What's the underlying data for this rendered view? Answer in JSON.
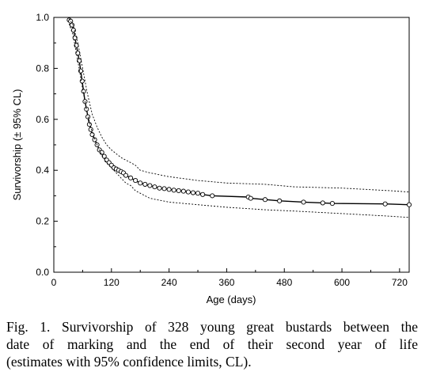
{
  "chart_data": {
    "type": "line",
    "xlabel": "Age (days)",
    "ylabel": "Survivorship (± 95% CL)",
    "xlim": [
      0,
      740
    ],
    "ylim": [
      0,
      1
    ],
    "x_ticks": [
      0,
      120,
      240,
      360,
      480,
      600,
      720
    ],
    "y_ticks": [
      0.0,
      0.2,
      0.4,
      0.6,
      0.8,
      1.0
    ],
    "x_tick_labels": [
      "0",
      "120",
      "240",
      "360",
      "480",
      "600",
      "720"
    ],
    "y_tick_labels": [
      "0.0",
      "0.2",
      "0.4",
      "0.6",
      "0.8",
      "1.0"
    ],
    "series": [
      {
        "style": "solid-with-circles",
        "x": [
          32,
          35,
          38,
          41,
          44,
          47,
          50,
          53,
          56,
          59,
          62,
          65,
          68,
          71,
          74,
          77,
          80,
          85,
          90,
          95,
          100,
          105,
          110,
          115,
          120,
          125,
          130,
          135,
          140,
          145,
          150,
          160,
          170,
          180,
          190,
          200,
          210,
          220,
          230,
          240,
          250,
          260,
          270,
          280,
          290,
          300,
          310,
          330,
          405,
          410,
          440,
          470,
          520,
          560,
          580,
          690,
          740
        ],
        "y": [
          0.99,
          0.985,
          0.97,
          0.95,
          0.92,
          0.89,
          0.86,
          0.83,
          0.79,
          0.75,
          0.71,
          0.67,
          0.64,
          0.61,
          0.58,
          0.56,
          0.54,
          0.52,
          0.5,
          0.48,
          0.47,
          0.455,
          0.44,
          0.43,
          0.42,
          0.41,
          0.405,
          0.4,
          0.395,
          0.39,
          0.38,
          0.37,
          0.36,
          0.35,
          0.345,
          0.34,
          0.335,
          0.33,
          0.328,
          0.325,
          0.322,
          0.32,
          0.318,
          0.315,
          0.312,
          0.31,
          0.305,
          0.3,
          0.295,
          0.29,
          0.285,
          0.28,
          0.275,
          0.272,
          0.27,
          0.268,
          0.265
        ]
      },
      {
        "style": "dotted-upper",
        "x": [
          32,
          40,
          50,
          60,
          70,
          80,
          90,
          100,
          110,
          120,
          130,
          140,
          150,
          160,
          170,
          180,
          200,
          240,
          300,
          360,
          440,
          500,
          600,
          700,
          740
        ],
        "y": [
          0.995,
          0.97,
          0.9,
          0.8,
          0.7,
          0.62,
          0.57,
          0.53,
          0.5,
          0.48,
          0.465,
          0.45,
          0.44,
          0.43,
          0.42,
          0.4,
          0.39,
          0.375,
          0.36,
          0.35,
          0.345,
          0.335,
          0.33,
          0.32,
          0.315
        ]
      },
      {
        "style": "dotted-lower",
        "x": [
          32,
          40,
          50,
          60,
          70,
          80,
          90,
          100,
          110,
          120,
          130,
          140,
          150,
          160,
          170,
          180,
          200,
          240,
          300,
          360,
          440,
          500,
          600,
          700,
          740
        ],
        "y": [
          0.975,
          0.93,
          0.83,
          0.72,
          0.62,
          0.55,
          0.5,
          0.46,
          0.43,
          0.41,
          0.39,
          0.37,
          0.35,
          0.34,
          0.32,
          0.31,
          0.29,
          0.275,
          0.265,
          0.255,
          0.245,
          0.24,
          0.23,
          0.22,
          0.215
        ]
      }
    ]
  },
  "caption": {
    "lines": [
      "Fig. 1.  Survivorship of 328 young great bustards between the",
      "date of marking and the end of their second year of life",
      "(estimates with 95% confidence limits, CL)."
    ]
  }
}
